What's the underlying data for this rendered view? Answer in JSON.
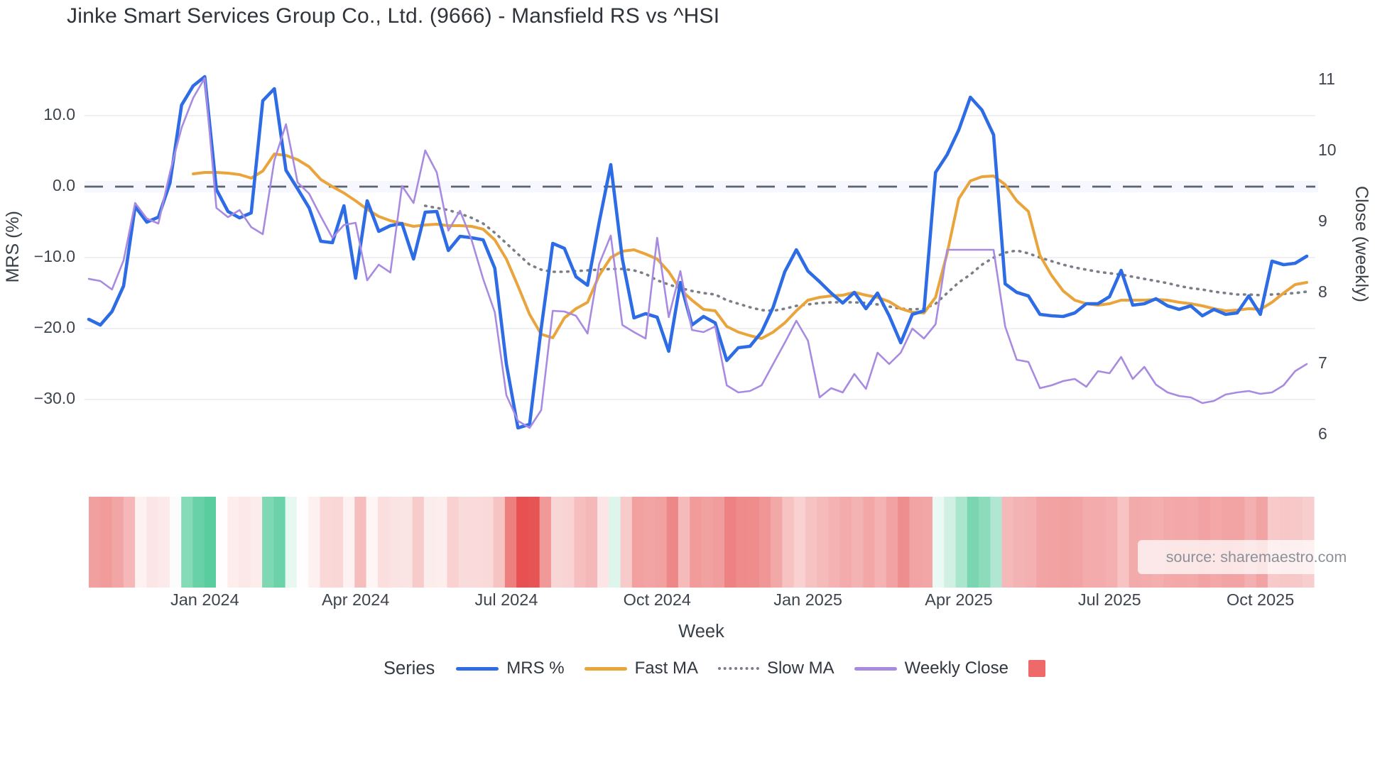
{
  "title": "Jinke Smart Services Group Co., Ltd. (9666) - Mansfield RS vs ^HSI",
  "source": "source: sharemaestro.com",
  "y_left": {
    "label": "MRS (%)",
    "ticks": [
      {
        "label": "10.0",
        "value": 10
      },
      {
        "label": "0.0",
        "value": 0
      },
      {
        "label": "−10.0",
        "value": -10
      },
      {
        "label": "−20.0",
        "value": -20
      },
      {
        "label": "−30.0",
        "value": -30
      }
    ]
  },
  "y_right": {
    "label": "Close (weekly)",
    "ticks": [
      {
        "label": "11",
        "value": 11
      },
      {
        "label": "10",
        "value": 10
      },
      {
        "label": "9",
        "value": 9
      },
      {
        "label": "8",
        "value": 8
      },
      {
        "label": "7",
        "value": 7
      },
      {
        "label": "6",
        "value": 6
      }
    ]
  },
  "x_axis": {
    "label": "Week",
    "ticks": [
      {
        "label": "Jan 2024",
        "week": 10
      },
      {
        "label": "Apr 2024",
        "week": 23
      },
      {
        "label": "Jul 2024",
        "week": 36
      },
      {
        "label": "Oct 2024",
        "week": 49
      },
      {
        "label": "Jan 2025",
        "week": 62
      },
      {
        "label": "Apr 2025",
        "week": 75
      },
      {
        "label": "Jul 2025",
        "week": 88
      },
      {
        "label": "Oct 2025",
        "week": 101
      }
    ]
  },
  "legend": {
    "title": "Series",
    "items": [
      {
        "label": "MRS %",
        "color": "#2e6ce6",
        "swatch": "line"
      },
      {
        "label": "Fast MA",
        "color": "#e9a43c",
        "swatch": "line"
      },
      {
        "label": "Slow MA",
        "color": "#7a7f87",
        "swatch": "dotted"
      },
      {
        "label": "Weekly Close",
        "color": "#a88be0",
        "swatch": "line"
      },
      {
        "label": "",
        "color": "#ee6a6a",
        "swatch": "square"
      }
    ]
  },
  "chart_data": {
    "type": "line",
    "title": "Jinke Smart Services Group Co., Ltd. (9666) - Mansfield RS vs ^HSI",
    "xlabel": "Week",
    "ylabel_left": "MRS (%)",
    "ylabel_right": "Close (weekly)",
    "x_unit": "weekly index, week 0 ≈ late Oct 2023, week 105 ≈ early Nov 2025",
    "ylim_left": [
      -35.7,
      19.8
    ],
    "ylim_right": [
      5.1,
      12.5
    ],
    "grid": "horizontal only",
    "legend_position": "bottom",
    "zero_line": {
      "value": 0,
      "style": "dashed",
      "color": "#5d6470"
    },
    "series": [
      {
        "name": "MRS %",
        "axis": "left",
        "color": "#2e6ce6",
        "style": "solid",
        "values": [
          -18.7,
          -19.5,
          -17.6,
          -14,
          -2.8,
          -5,
          -4.3,
          0.5,
          11.5,
          14.2,
          15.5,
          -0.4,
          -3.5,
          -4.4,
          -3.7,
          12.1,
          13.8,
          2.3,
          -0.3,
          -3,
          -7.7,
          -7.9,
          -2.7,
          -12.9,
          -2,
          -6.3,
          -5.5,
          -5.2,
          -10.2,
          -3.6,
          -3.5,
          -9,
          -7,
          -7.2,
          -7.5,
          -11.5,
          -25,
          -34,
          -33.5,
          -20,
          -8,
          -8.7,
          -12.7,
          -13.9,
          -5,
          3.1,
          -10.2,
          -18.5,
          -17.9,
          -18.4,
          -23.2,
          -13.5,
          -19.5,
          -18.3,
          -19.2,
          -24.5,
          -22.7,
          -22.5,
          -20.5,
          -17,
          -12,
          -8.9,
          -11.9,
          -13.4,
          -15,
          -16.4,
          -14.9,
          -17.2,
          -15,
          -18.2,
          -22,
          -18,
          -17.5,
          2,
          4.5,
          8,
          12.6,
          10.8,
          7.3,
          -13.7,
          -14.9,
          -15.4,
          -18,
          -18.2,
          -18.3,
          -17.8,
          -16.5,
          -16.5,
          -15.5,
          -11.8,
          -16.7,
          -16.5,
          -15.8,
          -16.8,
          -17.3,
          -16.8,
          -18.2,
          -17.3,
          -18,
          -17.8,
          -15.4,
          -18,
          -10.5,
          -11,
          -10.8,
          -9.8
        ]
      },
      {
        "name": "Fast MA",
        "axis": "left",
        "color": "#e9a43c",
        "style": "solid",
        "values": [
          null,
          null,
          null,
          null,
          null,
          null,
          null,
          null,
          null,
          1.8,
          2,
          2,
          1.9,
          1.7,
          1.2,
          2.2,
          4.6,
          4.4,
          3.8,
          2.8,
          1,
          0,
          -0.9,
          -2,
          -3.2,
          -4.2,
          -4.8,
          -5.2,
          -5.6,
          -5.4,
          -5.3,
          -5.5,
          -5.5,
          -5.6,
          -6,
          -7.5,
          -10.2,
          -14,
          -18,
          -20.8,
          -21.3,
          -18.5,
          -17.2,
          -16.3,
          -12.5,
          -10,
          -9.1,
          -8.9,
          -9.5,
          -10.2,
          -12,
          -14.5,
          -16,
          -17.3,
          -17.5,
          -19.7,
          -20.5,
          -21,
          -21.4,
          -20.5,
          -19.2,
          -17.5,
          -16,
          -15.6,
          -15.4,
          -15.3,
          -14.9,
          -15.3,
          -15.6,
          -16.2,
          -17.2,
          -17.7,
          -17.8,
          -15.6,
          -9.4,
          -1.7,
          0.8,
          1.4,
          1.5,
          0.3,
          -2,
          -3.5,
          -9.7,
          -12.5,
          -14.7,
          -16,
          -16.5,
          -16.7,
          -16.5,
          -16,
          -16,
          -16,
          -15.9,
          -16,
          -16.3,
          -16.5,
          -16.8,
          -17.2,
          -17.5,
          -17.4,
          -17.2,
          -17.3,
          -16.3,
          -15,
          -13.8,
          -13.5
        ]
      },
      {
        "name": "Slow MA",
        "axis": "left",
        "color": "#7a7f87",
        "style": "dotted",
        "values": [
          null,
          null,
          null,
          null,
          null,
          null,
          null,
          null,
          null,
          null,
          null,
          null,
          null,
          null,
          null,
          null,
          null,
          null,
          null,
          null,
          null,
          null,
          null,
          null,
          null,
          null,
          null,
          null,
          null,
          -2.7,
          -3,
          -3.3,
          -3.8,
          -4.4,
          -5.2,
          -6.5,
          -8,
          -9.5,
          -11,
          -11.7,
          -12,
          -12,
          -11.9,
          -11.8,
          -11.7,
          -11.6,
          -11.6,
          -11.8,
          -12.3,
          -13.2,
          -13.8,
          -14.3,
          -14.7,
          -15,
          -15.2,
          -16,
          -16.5,
          -17,
          -17.4,
          -17.5,
          -17.2,
          -16.8,
          -16.6,
          -16.4,
          -16.3,
          -16.3,
          -16.3,
          -16.4,
          -16.6,
          -16.9,
          -17.2,
          -17.3,
          -17.2,
          -16.5,
          -15,
          -13.5,
          -12.4,
          -11,
          -10,
          -9.3,
          -9,
          -9.4,
          -10,
          -10.5,
          -11,
          -11.4,
          -11.7,
          -12,
          -12.2,
          -12.4,
          -12.7,
          -13,
          -13.3,
          -13.6,
          -14,
          -14.3,
          -14.5,
          -14.8,
          -15,
          -15.2,
          -15.2,
          -15.3,
          -15.2,
          -15.1,
          -15,
          -14.8
        ]
      },
      {
        "name": "Weekly Close",
        "axis": "right",
        "color": "#a88be0",
        "style": "solid",
        "values": [
          8.2,
          8.17,
          8.05,
          8.46,
          9.27,
          9.05,
          8.98,
          9.7,
          10.33,
          10.75,
          11.03,
          9.2,
          9.07,
          9.17,
          8.93,
          8.83,
          9.87,
          10.38,
          9.56,
          9.4,
          9.08,
          8.78,
          8.96,
          8.99,
          8.18,
          8.4,
          8.29,
          9.51,
          9.27,
          10.01,
          9.7,
          8.88,
          9.16,
          8.75,
          8.2,
          7.73,
          6.56,
          6.2,
          6.1,
          6.35,
          7.75,
          7.74,
          7.68,
          7.43,
          8.41,
          8.81,
          7.55,
          7.45,
          7.36,
          8.78,
          7.66,
          8.31,
          7.48,
          7.45,
          7.53,
          6.7,
          6.6,
          6.62,
          6.7,
          7,
          7.3,
          7.61,
          7.33,
          6.53,
          6.66,
          6.6,
          6.86,
          6.65,
          7.16,
          7,
          7.16,
          7.5,
          7.36,
          7.56,
          8.61,
          8.61,
          8.61,
          8.61,
          8.61,
          7.53,
          7.06,
          7.03,
          6.66,
          6.7,
          6.76,
          6.79,
          6.68,
          6.9,
          6.87,
          7.1,
          6.79,
          6.96,
          6.71,
          6.6,
          6.55,
          6.53,
          6.45,
          6.48,
          6.57,
          6.6,
          6.62,
          6.58,
          6.6,
          6.7,
          6.9,
          7
        ]
      }
    ],
    "heatmap": {
      "description": "weekly color strip below plot, color derived from MRS % value",
      "source_series": "MRS %",
      "positive_color": "#55cb9c",
      "negative_color": "#e64c4c",
      "neutral_color": "#ffffff",
      "positive_scale_max": 16,
      "negative_scale_max": 35
    }
  }
}
